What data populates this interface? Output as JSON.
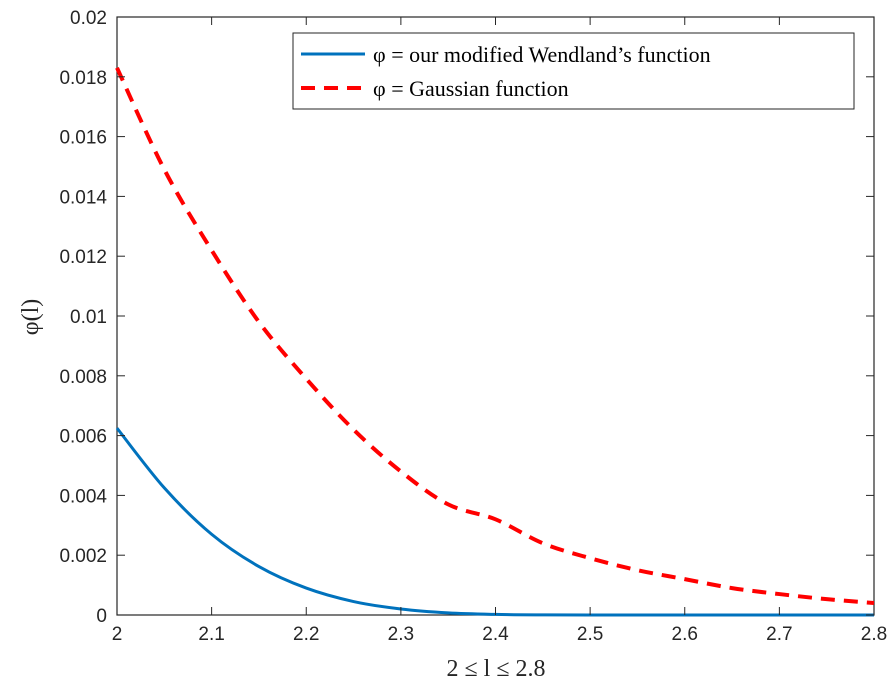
{
  "chart_data": {
    "type": "line",
    "title": "",
    "xlabel": "2 ≤ l ≤ 2.8",
    "ylabel": "φ(l)",
    "xlim": [
      2,
      2.8
    ],
    "ylim": [
      0,
      0.02
    ],
    "xticks": [
      "2",
      "2.1",
      "2.2",
      "2.3",
      "2.4",
      "2.5",
      "2.6",
      "2.7",
      "2.8"
    ],
    "yticks": [
      "0",
      "0.002",
      "0.004",
      "0.006",
      "0.008",
      "0.01",
      "0.012",
      "0.014",
      "0.016",
      "0.018",
      "0.02"
    ],
    "grid": false,
    "legend_position": "top-right",
    "series": [
      {
        "name": "φ = our modified Wendland’s function",
        "color": "#0072BD",
        "style": "solid",
        "x": [
          2.0,
          2.05,
          2.1,
          2.15,
          2.2,
          2.25,
          2.3,
          2.35,
          2.4,
          2.45,
          2.5,
          2.55,
          2.6,
          2.65,
          2.7,
          2.75,
          2.8
        ],
        "y": [
          0.00625,
          0.00425,
          0.0027,
          0.00162,
          0.0009,
          0.00045,
          0.0002,
          7e-05,
          2e-05,
          4e-06,
          0.0,
          0.0,
          0.0,
          0.0,
          0.0,
          0.0,
          0.0
        ]
      },
      {
        "name": "φ = Gaussian function",
        "color": "#FF0000",
        "style": "dashed",
        "x": [
          2.0,
          2.05,
          2.1,
          2.15,
          2.2,
          2.25,
          2.3,
          2.35,
          2.4,
          2.45,
          2.5,
          2.55,
          2.6,
          2.65,
          2.7,
          2.75,
          2.8
        ],
        "y": [
          0.0183,
          0.0149,
          0.0122,
          0.0098,
          0.0079,
          0.0062,
          0.0048,
          0.0037,
          0.0032,
          0.0024,
          0.0019,
          0.0015,
          0.0012,
          0.0009,
          0.0007,
          0.00053,
          0.0004
        ]
      }
    ]
  }
}
